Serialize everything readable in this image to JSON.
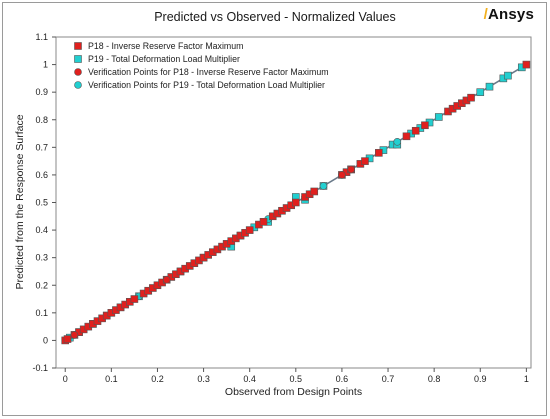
{
  "header": {
    "title": "Predicted vs Observed - Normalized Values",
    "brand": "Ansys"
  },
  "colors": {
    "p18": "#e0201e",
    "p19": "#22cfd0",
    "edge": "#555555",
    "line": "#6a7a8a"
  },
  "chart_data": {
    "type": "scatter",
    "title": "Predicted vs Observed - Normalized Values",
    "xlabel": "Observed from Design Points",
    "ylabel": "Predicted from the Response Surface",
    "xlim": [
      -0.02,
      1.01
    ],
    "ylim": [
      -0.1,
      1.1
    ],
    "xticks": [
      0,
      0.1,
      0.2,
      0.3,
      0.4,
      0.5,
      0.6,
      0.7,
      0.8,
      0.9,
      1
    ],
    "yticks": [
      -0.1,
      0,
      0.1,
      0.2,
      0.3,
      0.4,
      0.5,
      0.6,
      0.7,
      0.8,
      0.9,
      1,
      1.1
    ],
    "grid": false,
    "reference_line": true,
    "legend_position": "top-left",
    "series": [
      {
        "name": "P18 - Inverse Reserve Factor Maximum",
        "marker": "square",
        "color": "#e0201e",
        "points": [
          [
            0.0,
            0.0
          ],
          [
            0.005,
            0.005
          ],
          [
            0.02,
            0.02
          ],
          [
            0.03,
            0.03
          ],
          [
            0.04,
            0.04
          ],
          [
            0.05,
            0.05
          ],
          [
            0.06,
            0.06
          ],
          [
            0.07,
            0.07
          ],
          [
            0.08,
            0.08
          ],
          [
            0.09,
            0.09
          ],
          [
            0.1,
            0.1
          ],
          [
            0.11,
            0.11
          ],
          [
            0.12,
            0.12
          ],
          [
            0.13,
            0.13
          ],
          [
            0.14,
            0.14
          ],
          [
            0.15,
            0.15
          ],
          [
            0.17,
            0.17
          ],
          [
            0.18,
            0.18
          ],
          [
            0.19,
            0.19
          ],
          [
            0.2,
            0.2
          ],
          [
            0.21,
            0.21
          ],
          [
            0.22,
            0.22
          ],
          [
            0.23,
            0.23
          ],
          [
            0.24,
            0.24
          ],
          [
            0.25,
            0.25
          ],
          [
            0.26,
            0.26
          ],
          [
            0.27,
            0.27
          ],
          [
            0.28,
            0.28
          ],
          [
            0.29,
            0.29
          ],
          [
            0.3,
            0.3
          ],
          [
            0.31,
            0.31
          ],
          [
            0.32,
            0.32
          ],
          [
            0.33,
            0.33
          ],
          [
            0.34,
            0.34
          ],
          [
            0.35,
            0.35
          ],
          [
            0.36,
            0.36
          ],
          [
            0.37,
            0.37
          ],
          [
            0.38,
            0.38
          ],
          [
            0.39,
            0.39
          ],
          [
            0.4,
            0.4
          ],
          [
            0.42,
            0.42
          ],
          [
            0.43,
            0.43
          ],
          [
            0.45,
            0.45
          ],
          [
            0.46,
            0.46
          ],
          [
            0.47,
            0.47
          ],
          [
            0.48,
            0.48
          ],
          [
            0.49,
            0.49
          ],
          [
            0.5,
            0.5
          ],
          [
            0.52,
            0.52
          ],
          [
            0.53,
            0.53
          ],
          [
            0.54,
            0.54
          ],
          [
            0.6,
            0.6
          ],
          [
            0.61,
            0.61
          ],
          [
            0.62,
            0.62
          ],
          [
            0.64,
            0.64
          ],
          [
            0.65,
            0.65
          ],
          [
            0.68,
            0.68
          ],
          [
            0.74,
            0.74
          ],
          [
            0.76,
            0.76
          ],
          [
            0.78,
            0.78
          ],
          [
            0.83,
            0.83
          ],
          [
            0.84,
            0.84
          ],
          [
            0.85,
            0.85
          ],
          [
            0.86,
            0.86
          ],
          [
            0.87,
            0.87
          ],
          [
            0.88,
            0.88
          ],
          [
            1.0,
            1.0
          ]
        ]
      },
      {
        "name": "P19 - Total Deformation Load Multiplier",
        "marker": "square",
        "color": "#22cfd0",
        "points": [
          [
            0.01,
            0.01
          ],
          [
            0.03,
            0.03
          ],
          [
            0.06,
            0.06
          ],
          [
            0.09,
            0.09
          ],
          [
            0.12,
            0.12
          ],
          [
            0.16,
            0.16
          ],
          [
            0.18,
            0.18
          ],
          [
            0.25,
            0.25
          ],
          [
            0.3,
            0.3
          ],
          [
            0.36,
            0.34
          ],
          [
            0.38,
            0.38
          ],
          [
            0.41,
            0.41
          ],
          [
            0.44,
            0.43
          ],
          [
            0.5,
            0.52
          ],
          [
            0.52,
            0.51
          ],
          [
            0.56,
            0.56
          ],
          [
            0.62,
            0.62
          ],
          [
            0.66,
            0.66
          ],
          [
            0.69,
            0.69
          ],
          [
            0.71,
            0.71
          ],
          [
            0.72,
            0.71
          ],
          [
            0.75,
            0.75
          ],
          [
            0.77,
            0.77
          ],
          [
            0.79,
            0.79
          ],
          [
            0.81,
            0.81
          ],
          [
            0.9,
            0.9
          ],
          [
            0.92,
            0.92
          ],
          [
            0.95,
            0.95
          ],
          [
            0.96,
            0.96
          ],
          [
            0.99,
            0.99
          ]
        ]
      },
      {
        "name": "Verification Points for P18 - Inverse Reserve Factor Maximum",
        "marker": "circle",
        "color": "#e0201e",
        "points": [
          [
            0.02,
            0.02
          ],
          [
            0.22,
            0.22
          ],
          [
            0.6,
            0.6
          ],
          [
            0.62,
            0.62
          ]
        ]
      },
      {
        "name": "Verification Points for P19 - Total Deformation Load Multiplier",
        "marker": "circle",
        "color": "#22cfd0",
        "points": [
          [
            0.16,
            0.16
          ],
          [
            0.44,
            0.44
          ],
          [
            0.56,
            0.56
          ],
          [
            0.72,
            0.72
          ]
        ]
      }
    ]
  }
}
